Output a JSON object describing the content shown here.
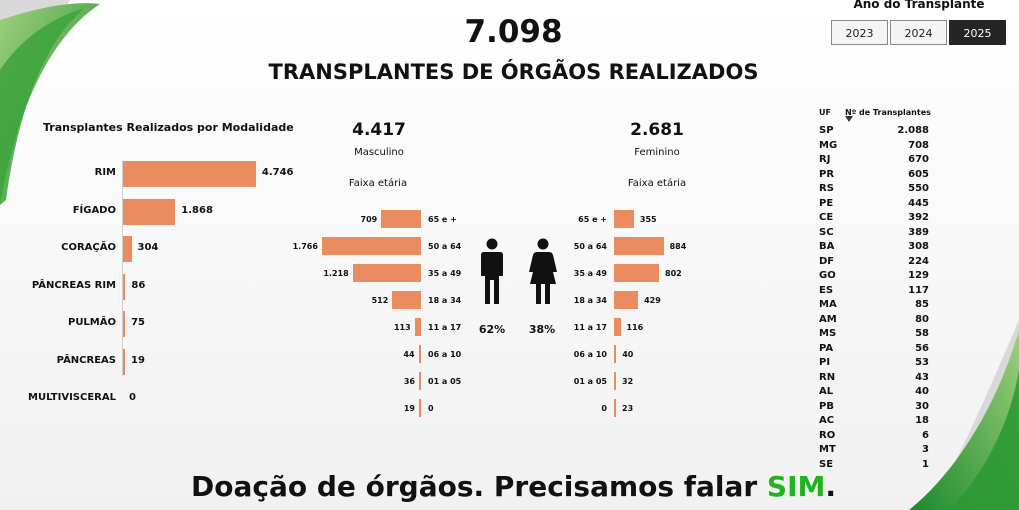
{
  "header": {
    "total": "7.098",
    "title": "TRANSPLANTES DE ÓRGÃOS REALIZADOS"
  },
  "year_filter": {
    "title": "Ano do Transplante",
    "options": [
      "2023",
      "2024",
      "2025"
    ],
    "selected": "2025"
  },
  "colors": {
    "bar": "#e98d60",
    "accent_green": "#1fb31f",
    "selected_button": "#252525"
  },
  "icons": {
    "male": "male-person-icon",
    "female": "female-person-icon"
  },
  "chart_data": [
    {
      "type": "bar",
      "orientation": "horizontal",
      "title": "Transplantes Realizados por Modalidade",
      "categories": [
        "RIM",
        "FÍGADO",
        "CORAÇÃO",
        "PÂNCREAS RIM",
        "PULMÃO",
        "PÂNCREAS",
        "MULTIVISCERAL"
      ],
      "values": [
        4746,
        1868,
        304,
        86,
        75,
        19,
        0
      ],
      "value_labels": [
        "4.746",
        "1.868",
        "304",
        "86",
        "75",
        "19",
        "0"
      ],
      "xlim": [
        0,
        5000
      ]
    },
    {
      "type": "bar",
      "orientation": "horizontal",
      "subtitle": "Faixa etária",
      "categories": [
        "65 e +",
        "50 a 64",
        "35 a 49",
        "18 a 34",
        "11 a 17",
        "06 a 10",
        "01 a 05",
        "0"
      ],
      "series": [
        {
          "name": "Masculino",
          "total": "4.417",
          "percent": "62%",
          "values": [
            709,
            1766,
            1218,
            512,
            113,
            44,
            36,
            19
          ],
          "value_labels": [
            "709",
            "1.766",
            "1.218",
            "512",
            "113",
            "44",
            "36",
            "19"
          ]
        },
        {
          "name": "Feminino",
          "total": "2.681",
          "percent": "38%",
          "values": [
            355,
            884,
            802,
            429,
            116,
            40,
            32,
            23
          ],
          "value_labels": [
            "355",
            "884",
            "802",
            "429",
            "116",
            "40",
            "32",
            "23"
          ]
        }
      ],
      "xlim": [
        0,
        1800
      ]
    },
    {
      "type": "table",
      "columns": [
        "UF",
        "Nº de Transplantes"
      ],
      "sorted_by": "Nº de Transplantes",
      "rows": [
        [
          "SP",
          "2.088"
        ],
        [
          "MG",
          "708"
        ],
        [
          "RJ",
          "670"
        ],
        [
          "PR",
          "605"
        ],
        [
          "RS",
          "550"
        ],
        [
          "PE",
          "445"
        ],
        [
          "CE",
          "392"
        ],
        [
          "SC",
          "389"
        ],
        [
          "BA",
          "308"
        ],
        [
          "DF",
          "224"
        ],
        [
          "GO",
          "129"
        ],
        [
          "ES",
          "117"
        ],
        [
          "MA",
          "85"
        ],
        [
          "AM",
          "80"
        ],
        [
          "MS",
          "58"
        ],
        [
          "PA",
          "56"
        ],
        [
          "PI",
          "53"
        ],
        [
          "RN",
          "43"
        ],
        [
          "AL",
          "40"
        ],
        [
          "PB",
          "30"
        ],
        [
          "AC",
          "18"
        ],
        [
          "RO",
          "6"
        ],
        [
          "MT",
          "3"
        ],
        [
          "SE",
          "1"
        ]
      ]
    }
  ],
  "slogan": {
    "text": "Doação de órgãos. Precisamos falar ",
    "highlight": "SIM",
    "end": "."
  }
}
